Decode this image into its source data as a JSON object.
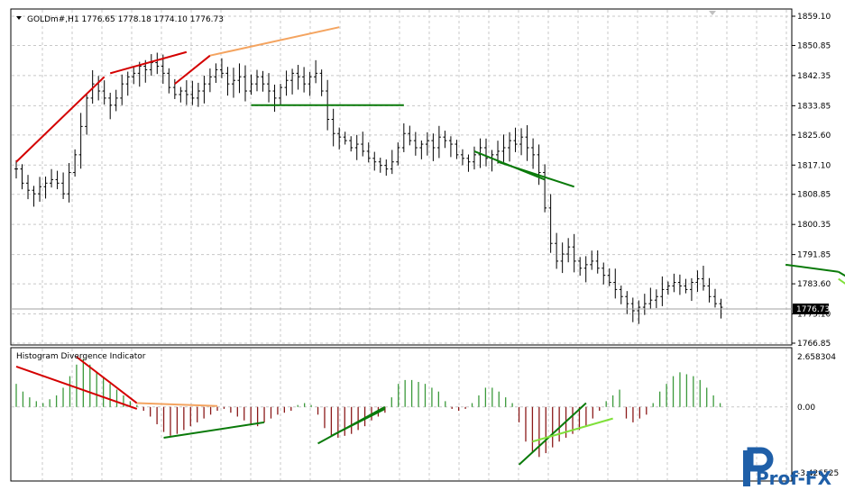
{
  "main_chart": {
    "symbol_info": "GOLDm#,H1  1776.65 1778.18 1774.10 1776.73",
    "price_axis": [
      "1859.10",
      "1850.85",
      "1842.35",
      "1833.85",
      "1825.60",
      "1817.10",
      "1808.85",
      "1800.35",
      "1791.85",
      "1783.60",
      "1775.10",
      "1766.85"
    ],
    "current_price": "1776.73"
  },
  "indicator": {
    "title": "Histogram Divergence Indicator",
    "axis": [
      "2.658304",
      "0.00",
      "-3.426525"
    ]
  },
  "watermark": {
    "text": "Prof-FX"
  },
  "colors": {
    "bar": "#000000",
    "grid": "#c8c8c8",
    "bearish_div": "#d40000",
    "bearish_weak": "#f4a460",
    "bullish_div": "#0a7a0a",
    "bullish_weak": "#7fe03a",
    "hist_pos": "#3c9a3c",
    "hist_neg": "#8b1a1a"
  },
  "chart_data": [
    {
      "type": "line",
      "title": "GOLDm#,H1",
      "ylim": [
        1766.85,
        1859.1
      ],
      "close": [
        1816,
        1812,
        1810,
        1809,
        1811,
        1812,
        1813,
        1812,
        1809,
        1815,
        1820,
        1828,
        1836,
        1840,
        1838,
        1836,
        1834,
        1836,
        1840,
        1842,
        1843,
        1845,
        1844,
        1846,
        1845,
        1843,
        1839,
        1837,
        1838,
        1837,
        1836,
        1838,
        1840,
        1842,
        1844,
        1843,
        1840,
        1841,
        1842,
        1838,
        1840,
        1842,
        1840,
        1838,
        1836,
        1839,
        1841,
        1843,
        1842,
        1840,
        1842,
        1843,
        1838,
        1830,
        1826,
        1825,
        1824,
        1822,
        1823,
        1821,
        1819,
        1818,
        1817,
        1816,
        1818,
        1822,
        1826,
        1824,
        1822,
        1823,
        1824,
        1822,
        1825,
        1824,
        1823,
        1820,
        1819,
        1818,
        1820,
        1822,
        1819,
        1820,
        1821,
        1822,
        1824,
        1823,
        1825,
        1822,
        1820,
        1815,
        1805,
        1795,
        1790,
        1792,
        1794,
        1790,
        1788,
        1789,
        1790,
        1788,
        1786,
        1784,
        1782,
        1780,
        1778,
        1776,
        1777,
        1778,
        1779,
        1780,
        1782,
        1783,
        1784,
        1783,
        1782,
        1784,
        1785,
        1783,
        1780,
        1778,
        1777
      ],
      "series": [
        {
          "name": "",
          "values": []
        }
      ]
    },
    {
      "type": "bar",
      "title": "Histogram Divergence Indicator",
      "ylim": [
        -3.426525,
        2.658304
      ],
      "values": [
        1.2,
        0.8,
        0.5,
        0.3,
        0.2,
        0.4,
        0.6,
        1.0,
        1.6,
        2.2,
        2.5,
        2.2,
        1.8,
        1.5,
        1.2,
        0.9,
        0.6,
        0.3,
        0.1,
        -0.2,
        -0.5,
        -0.9,
        -1.3,
        -1.5,
        -1.4,
        -1.2,
        -1.0,
        -0.8,
        -0.6,
        -0.4,
        -0.2,
        -0.1,
        -0.3,
        -0.5,
        -0.7,
        -0.9,
        -1.0,
        -0.8,
        -0.6,
        -0.4,
        -0.3,
        -0.2,
        0.1,
        0.2,
        0.1,
        -0.4,
        -1.1,
        -1.5,
        -1.6,
        -1.5,
        -1.4,
        -1.2,
        -1.0,
        -0.7,
        -0.5,
        -0.3,
        0.5,
        1.2,
        1.4,
        1.4,
        1.3,
        1.2,
        1.0,
        0.8,
        0.3,
        -0.1,
        -0.2,
        -0.1,
        0.2,
        0.6,
        1.0,
        1.0,
        0.8,
        0.5,
        0.2,
        -0.8,
        -1.8,
        -2.4,
        -2.6,
        -2.4,
        -2.1,
        -1.8,
        -1.6,
        -1.4,
        -1.2,
        -1.0,
        -0.6,
        -0.2,
        0.3,
        0.6,
        0.9,
        -0.6,
        -0.8,
        -0.6,
        -0.4,
        0.2,
        0.8,
        1.2,
        1.6,
        1.8,
        1.7,
        1.6,
        1.4,
        1.0,
        0.6,
        0.2
      ]
    }
  ]
}
